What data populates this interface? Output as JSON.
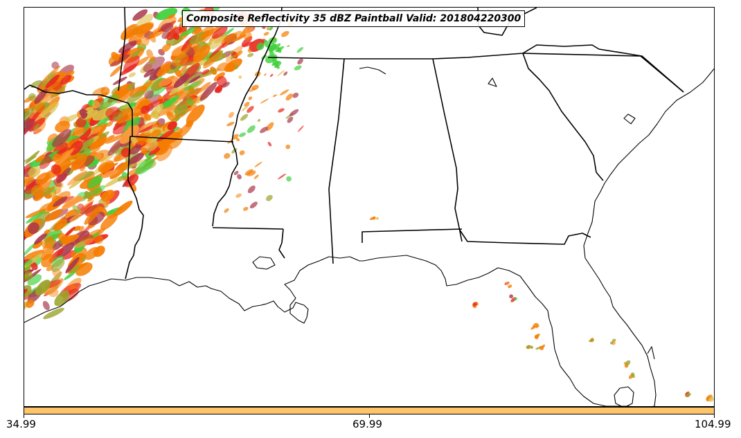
{
  "title": "Composite Reflectivity 35 dBZ Paintball Valid: 201804220300",
  "colorbar": {
    "color": "#fdc46a",
    "ticks": [
      "34.99",
      "69.99",
      "104.99"
    ]
  },
  "colors": {
    "border": "#000000",
    "paint_orange": "#f57c00",
    "paint_red": "#e8271c",
    "paint_green": "#3fd03a",
    "paint_olive": "#9aa32a",
    "paint_maroon": "#a8374a",
    "paint_light_orange": "#fb9a3c",
    "paint_yellow": "#dcc04a"
  },
  "map": {
    "region": "US Gulf Coast / Southeast",
    "features": [
      "state-borders",
      "coastline",
      "lakes",
      "precipitation-paintball"
    ]
  }
}
